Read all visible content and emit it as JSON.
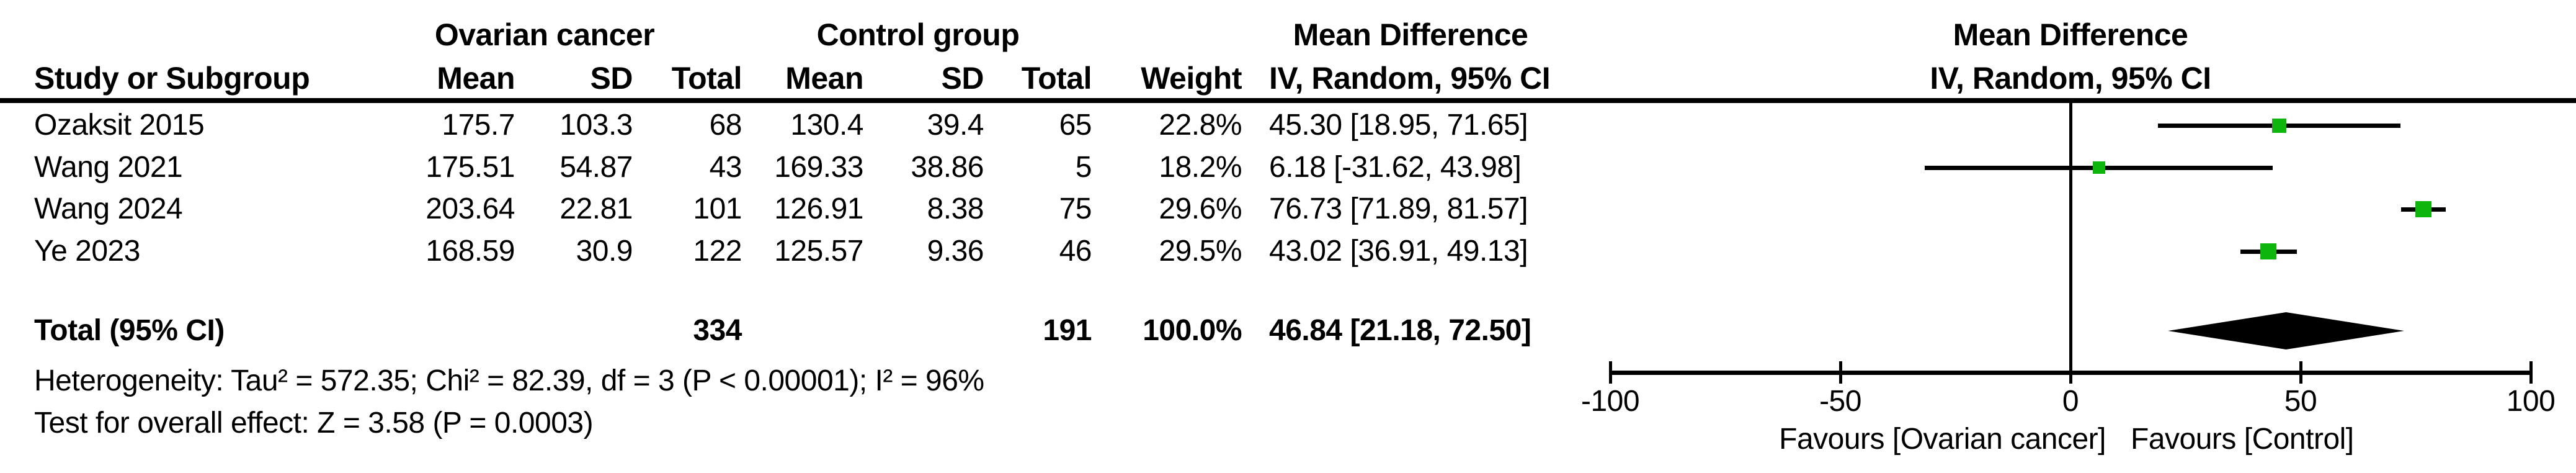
{
  "table": {
    "group1_header": "Ovarian cancer",
    "group2_header": "Control group",
    "md_header_line1": "Mean Difference",
    "md_header_line2": "IV, Random, 95% CI",
    "plot_header_line1": "Mean Difference",
    "plot_header_line2": "IV, Random, 95% CI",
    "col_headers": {
      "study": "Study or Subgroup",
      "mean1": "Mean",
      "sd1": "SD",
      "total1": "Total",
      "mean2": "Mean",
      "sd2": "SD",
      "total2": "Total",
      "weight": "Weight",
      "ci": "IV, Random, 95% CI"
    },
    "rows": [
      {
        "study": "Ozaksit 2015",
        "mean1": "175.7",
        "sd1": "103.3",
        "total1": "68",
        "mean2": "130.4",
        "sd2": "39.4",
        "total2": "65",
        "weight": "22.8%",
        "ci": "45.30 [18.95, 71.65]"
      },
      {
        "study": "Wang 2021",
        "mean1": "175.51",
        "sd1": "54.87",
        "total1": "43",
        "mean2": "169.33",
        "sd2": "38.86",
        "total2": "5",
        "weight": "18.2%",
        "ci": "6.18 [-31.62, 43.98]"
      },
      {
        "study": "Wang 2024",
        "mean1": "203.64",
        "sd1": "22.81",
        "total1": "101",
        "mean2": "126.91",
        "sd2": "8.38",
        "total2": "75",
        "weight": "29.6%",
        "ci": "76.73 [71.89, 81.57]"
      },
      {
        "study": "Ye 2023",
        "mean1": "168.59",
        "sd1": "30.9",
        "total1": "122",
        "mean2": "125.57",
        "sd2": "9.36",
        "total2": "46",
        "weight": "29.5%",
        "ci": "43.02 [36.91, 49.13]"
      }
    ],
    "total_row": {
      "study": "Total (95% CI)",
      "total1": "334",
      "total2": "191",
      "weight": "100.0%",
      "ci": "46.84 [21.18, 72.50]"
    },
    "heterogeneity": "Heterogeneity: Tau² = 572.35; Chi² = 82.39, df = 3 (P < 0.00001); I² = 96%",
    "overall_effect": "Test for overall effect: Z = 3.58 (P = 0.0003)"
  },
  "chart_data": {
    "type": "scatter",
    "variant": "forest_plot",
    "effect_measure": "Mean Difference, IV, Random, 95% CI",
    "studies": [
      {
        "name": "Ozaksit 2015",
        "md": 45.3,
        "ci_low": 18.95,
        "ci_high": 71.65,
        "weight_pct": 22.8
      },
      {
        "name": "Wang 2021",
        "md": 6.18,
        "ci_low": -31.62,
        "ci_high": 43.98,
        "weight_pct": 18.2
      },
      {
        "name": "Wang 2024",
        "md": 76.73,
        "ci_low": 71.89,
        "ci_high": 81.57,
        "weight_pct": 29.6
      },
      {
        "name": "Ye 2023",
        "md": 43.02,
        "ci_low": 36.91,
        "ci_high": 49.13,
        "weight_pct": 29.5
      }
    ],
    "pooled": {
      "name": "Total (95% CI)",
      "md": 46.84,
      "ci_low": 21.18,
      "ci_high": 72.5,
      "weight_pct": 100.0
    },
    "x_axis": {
      "min": -100,
      "max": 100,
      "ticks": [
        -100,
        -50,
        0,
        50,
        100
      ]
    },
    "favours_left": "Favours [Ovarian cancer]",
    "favours_right": "Favours [Control]",
    "colors": {
      "study_marker": "#0db50d",
      "pooled_diamond": "#000000",
      "line": "#000000"
    }
  }
}
